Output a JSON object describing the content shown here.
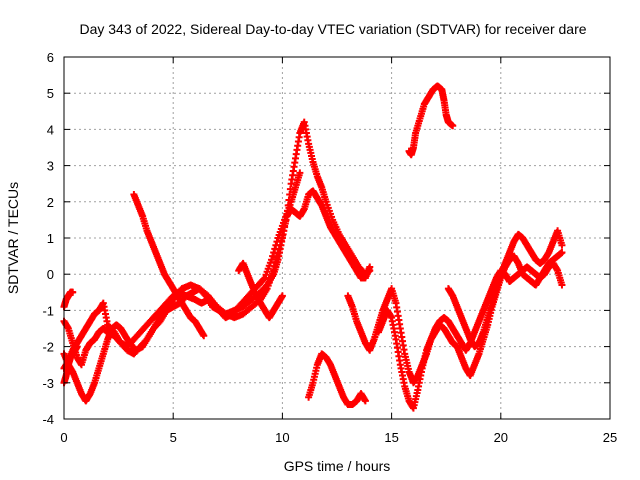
{
  "chart_data": {
    "type": "scatter",
    "title": "Day 343 of 2022, Sidereal Day-to-day VTEC variation (SDTVAR) for receiver dare",
    "xlabel": "GPS time / hours",
    "ylabel": "SDTVAR / TECUs",
    "xlim": [
      0,
      25
    ],
    "ylim": [
      -4,
      6
    ],
    "xticks": [
      0,
      5,
      10,
      15,
      20,
      25
    ],
    "yticks": [
      -4,
      -3,
      -2,
      -1,
      0,
      1,
      2,
      3,
      4,
      5,
      6
    ],
    "grid": true,
    "marker": "plus",
    "color": "#ff0000",
    "series": [
      {
        "name": "s1",
        "x": [
          0.0,
          0.2,
          0.4,
          0.6,
          0.8,
          1.0,
          1.2,
          1.4,
          1.6,
          1.8,
          2.0,
          2.3,
          2.6,
          2.9,
          3.2,
          3.5,
          3.8,
          4.1,
          4.4,
          4.7,
          5.0,
          5.3,
          5.6,
          6.0,
          6.3,
          6.6,
          7.0,
          7.4,
          7.8,
          8.2,
          8.6,
          9.0,
          9.3,
          9.6,
          9.8,
          10.0,
          10.2,
          10.4,
          10.6,
          10.8,
          11.0,
          11.2,
          11.4,
          11.6,
          11.8,
          12.0,
          12.2,
          12.4,
          12.6,
          12.8,
          13.0,
          13.2,
          13.4,
          13.6,
          13.8,
          14.0
        ],
        "y": [
          -1.3,
          -1.5,
          -1.9,
          -2.3,
          -2.5,
          -2.1,
          -1.9,
          -1.8,
          -1.6,
          -1.5,
          -1.6,
          -1.7,
          -1.9,
          -2.0,
          -1.8,
          -1.6,
          -1.4,
          -1.2,
          -1.0,
          -0.8,
          -0.6,
          -0.5,
          -0.6,
          -0.7,
          -0.8,
          -0.7,
          -0.9,
          -1.1,
          -1.0,
          -0.9,
          -0.7,
          -0.5,
          -0.3,
          0.0,
          0.4,
          1.0,
          1.6,
          1.8,
          1.7,
          1.6,
          1.8,
          2.2,
          2.3,
          2.1,
          1.9,
          1.6,
          1.3,
          1.1,
          0.9,
          0.7,
          0.5,
          0.3,
          0.1,
          -0.1,
          -0.1,
          0.2
        ]
      },
      {
        "name": "s2",
        "x": [
          0.0,
          0.2,
          0.4,
          0.6,
          0.8,
          1.0,
          1.2,
          1.4,
          1.6,
          1.8,
          2.0,
          2.2,
          2.4,
          2.6,
          2.8,
          3.0,
          3.3,
          3.6,
          3.9,
          4.2,
          4.5,
          4.8,
          5.1,
          5.4,
          5.8,
          6.2,
          6.6,
          7.0,
          7.4,
          7.8,
          8.2,
          8.6,
          9.0,
          9.3,
          9.6,
          9.9,
          10.2,
          10.4,
          10.6,
          10.8,
          11.0,
          11.2,
          11.4,
          11.6,
          11.8,
          12.0,
          12.3,
          12.6,
          12.9,
          13.2,
          13.5,
          13.8,
          14.0
        ],
        "y": [
          -2.2,
          -2.5,
          -2.7,
          -3.0,
          -3.3,
          -3.5,
          -3.3,
          -3.0,
          -2.6,
          -2.2,
          -1.8,
          -1.5,
          -1.4,
          -1.5,
          -1.7,
          -1.9,
          -2.1,
          -2.0,
          -1.7,
          -1.4,
          -1.1,
          -0.9,
          -0.6,
          -0.4,
          -0.3,
          -0.4,
          -0.6,
          -0.9,
          -1.1,
          -1.2,
          -1.1,
          -0.9,
          -0.7,
          -0.4,
          0.1,
          0.8,
          1.6,
          2.5,
          3.2,
          3.9,
          4.2,
          3.6,
          3.1,
          2.7,
          2.4,
          2.0,
          1.5,
          1.1,
          0.8,
          0.5,
          0.2,
          0.0,
          0.1
        ]
      },
      {
        "name": "s3",
        "x": [
          3.2,
          3.4,
          3.6,
          3.8,
          4.0,
          4.2,
          4.4,
          4.6,
          4.8,
          5.0,
          5.2,
          5.4,
          5.6,
          5.8,
          6.0,
          6.2,
          6.4
        ],
        "y": [
          2.2,
          1.9,
          1.6,
          1.2,
          0.9,
          0.6,
          0.3,
          0.0,
          -0.2,
          -0.4,
          -0.6,
          -0.8,
          -1.0,
          -1.2,
          -1.3,
          -1.5,
          -1.7
        ]
      },
      {
        "name": "s4",
        "x": [
          0.0,
          0.2,
          0.4,
          0.6,
          0.8,
          1.0,
          1.2,
          1.4,
          1.6,
          1.8,
          2.0,
          2.3,
          2.6,
          2.9,
          3.2,
          3.5,
          3.8,
          4.1,
          4.4,
          4.7,
          5.0,
          5.3,
          5.6,
          5.9,
          6.2,
          6.5,
          6.8,
          7.1,
          7.4,
          7.7,
          8.0,
          8.3,
          8.6,
          8.9,
          9.2,
          9.5,
          9.8,
          10.1,
          10.4,
          10.6,
          10.8
        ],
        "y": [
          -2.6,
          -2.4,
          -2.1,
          -1.9,
          -1.7,
          -1.5,
          -1.3,
          -1.1,
          -1.0,
          -0.8,
          -1.4,
          -1.6,
          -1.9,
          -2.1,
          -2.2,
          -2.0,
          -1.8,
          -1.5,
          -1.3,
          -1.0,
          -0.9,
          -0.8,
          -0.6,
          -0.5,
          -0.4,
          -0.6,
          -0.9,
          -1.0,
          -1.2,
          -1.1,
          -0.9,
          -0.7,
          -0.5,
          -0.3,
          -0.1,
          0.4,
          1.0,
          1.5,
          2.0,
          2.4,
          2.8
        ]
      },
      {
        "name": "s5",
        "x": [
          0.0,
          0.1,
          0.2,
          0.3,
          0.4
        ],
        "y": [
          -0.9,
          -0.7,
          -0.6,
          -0.5,
          -0.5
        ]
      },
      {
        "name": "s6",
        "x": [
          0.0,
          0.1,
          0.2,
          0.3,
          0.4,
          0.5,
          0.6
        ],
        "y": [
          -3.0,
          -2.8,
          -2.5,
          -2.3,
          -2.2,
          -2.1,
          -2.0
        ]
      },
      {
        "name": "s7",
        "x": [
          11.2,
          11.4,
          11.6,
          11.8,
          12.0,
          12.2,
          12.4,
          12.6,
          12.8,
          13.0,
          13.2,
          13.4,
          13.6,
          13.8
        ],
        "y": [
          -3.4,
          -3.0,
          -2.5,
          -2.2,
          -2.3,
          -2.5,
          -2.8,
          -3.1,
          -3.4,
          -3.6,
          -3.6,
          -3.5,
          -3.3,
          -3.5
        ]
      },
      {
        "name": "s8",
        "x": [
          13.0,
          13.2,
          13.4,
          13.6,
          13.8,
          14.0,
          14.2,
          14.4,
          14.6,
          14.8,
          15.0,
          15.2,
          15.4,
          15.6,
          15.8,
          16.0,
          16.2,
          16.4,
          16.6,
          16.8,
          17.0,
          17.2,
          17.4,
          17.6,
          17.8,
          18.0,
          18.2,
          18.4,
          18.6,
          18.8,
          19.0,
          19.2,
          19.4,
          19.6,
          19.8,
          20.0,
          20.2,
          20.4,
          20.6,
          20.8,
          21.0,
          21.2,
          21.4,
          21.6,
          21.8,
          22.0,
          22.2,
          22.4,
          22.6,
          22.8
        ],
        "y": [
          -0.6,
          -0.9,
          -1.3,
          -1.6,
          -1.9,
          -2.1,
          -1.8,
          -1.4,
          -1.0,
          -0.7,
          -0.4,
          -0.8,
          -1.5,
          -2.2,
          -2.7,
          -3.0,
          -2.8,
          -2.5,
          -2.2,
          -1.8,
          -1.5,
          -1.3,
          -1.2,
          -1.3,
          -1.5,
          -1.7,
          -1.9,
          -2.1,
          -1.9,
          -1.6,
          -1.3,
          -1.0,
          -0.7,
          -0.4,
          -0.1,
          0.1,
          0.0,
          -0.2,
          -0.1,
          0.0,
          0.1,
          0.2,
          0.1,
          0.0,
          -0.1,
          0.1,
          0.3,
          0.4,
          0.5,
          0.6
        ]
      },
      {
        "name": "s9",
        "x": [
          14.4,
          14.6,
          14.8,
          15.0,
          15.2,
          15.4,
          15.6,
          15.8,
          16.0,
          16.2,
          16.4,
          16.6,
          16.8,
          17.0,
          17.2,
          17.4,
          17.6,
          17.8,
          18.0,
          18.2,
          18.4,
          18.6,
          18.8,
          19.0,
          19.2,
          19.4,
          19.6,
          19.8,
          20.0,
          20.2,
          20.4,
          20.6,
          20.8,
          21.0,
          21.2,
          21.4,
          21.6,
          21.8,
          22.0,
          22.2,
          22.4,
          22.6,
          22.8
        ],
        "y": [
          -1.6,
          -1.3,
          -1.0,
          -1.2,
          -1.8,
          -2.5,
          -3.1,
          -3.5,
          -3.7,
          -3.2,
          -2.6,
          -2.1,
          -1.8,
          -1.6,
          -1.4,
          -1.5,
          -1.7,
          -1.9,
          -2.0,
          -2.3,
          -2.6,
          -2.8,
          -2.5,
          -2.2,
          -1.8,
          -1.4,
          -0.9,
          -0.5,
          -0.1,
          0.2,
          0.4,
          0.5,
          0.3,
          0.0,
          -0.1,
          -0.2,
          -0.3,
          -0.1,
          0.0,
          0.2,
          0.3,
          0.1,
          -0.3
        ]
      },
      {
        "name": "s10",
        "x": [
          17.6,
          17.8,
          18.0,
          18.2,
          18.4,
          18.6,
          18.8,
          19.0,
          19.2,
          19.4,
          19.6,
          19.8,
          20.0,
          20.2,
          20.4,
          20.6,
          20.8,
          21.0,
          21.2,
          21.4,
          21.6,
          21.8,
          22.0,
          22.2,
          22.4,
          22.6,
          22.8
        ],
        "y": [
          -0.4,
          -0.6,
          -0.9,
          -1.2,
          -1.5,
          -1.8,
          -2.0,
          -1.9,
          -1.6,
          -1.2,
          -0.8,
          -0.4,
          0.0,
          0.3,
          0.6,
          0.9,
          1.1,
          1.0,
          0.8,
          0.6,
          0.4,
          0.3,
          0.4,
          0.6,
          0.9,
          1.2,
          0.8
        ]
      },
      {
        "name": "s11",
        "x": [
          15.8,
          15.9,
          16.0,
          16.1,
          16.3,
          16.5,
          16.7,
          16.9,
          17.1,
          17.3,
          17.4,
          17.5,
          17.6,
          17.8
        ],
        "y": [
          3.4,
          3.3,
          3.5,
          3.9,
          4.3,
          4.7,
          4.9,
          5.1,
          5.2,
          5.1,
          4.8,
          4.4,
          4.2,
          4.1
        ]
      },
      {
        "name": "s12",
        "x": [
          8.0,
          8.2,
          8.4,
          8.6,
          8.8,
          9.0,
          9.2,
          9.4,
          9.6,
          9.8,
          10.0
        ],
        "y": [
          0.1,
          0.3,
          0.0,
          -0.3,
          -0.6,
          -0.8,
          -1.0,
          -1.2,
          -1.0,
          -0.8,
          -0.6
        ]
      }
    ]
  }
}
